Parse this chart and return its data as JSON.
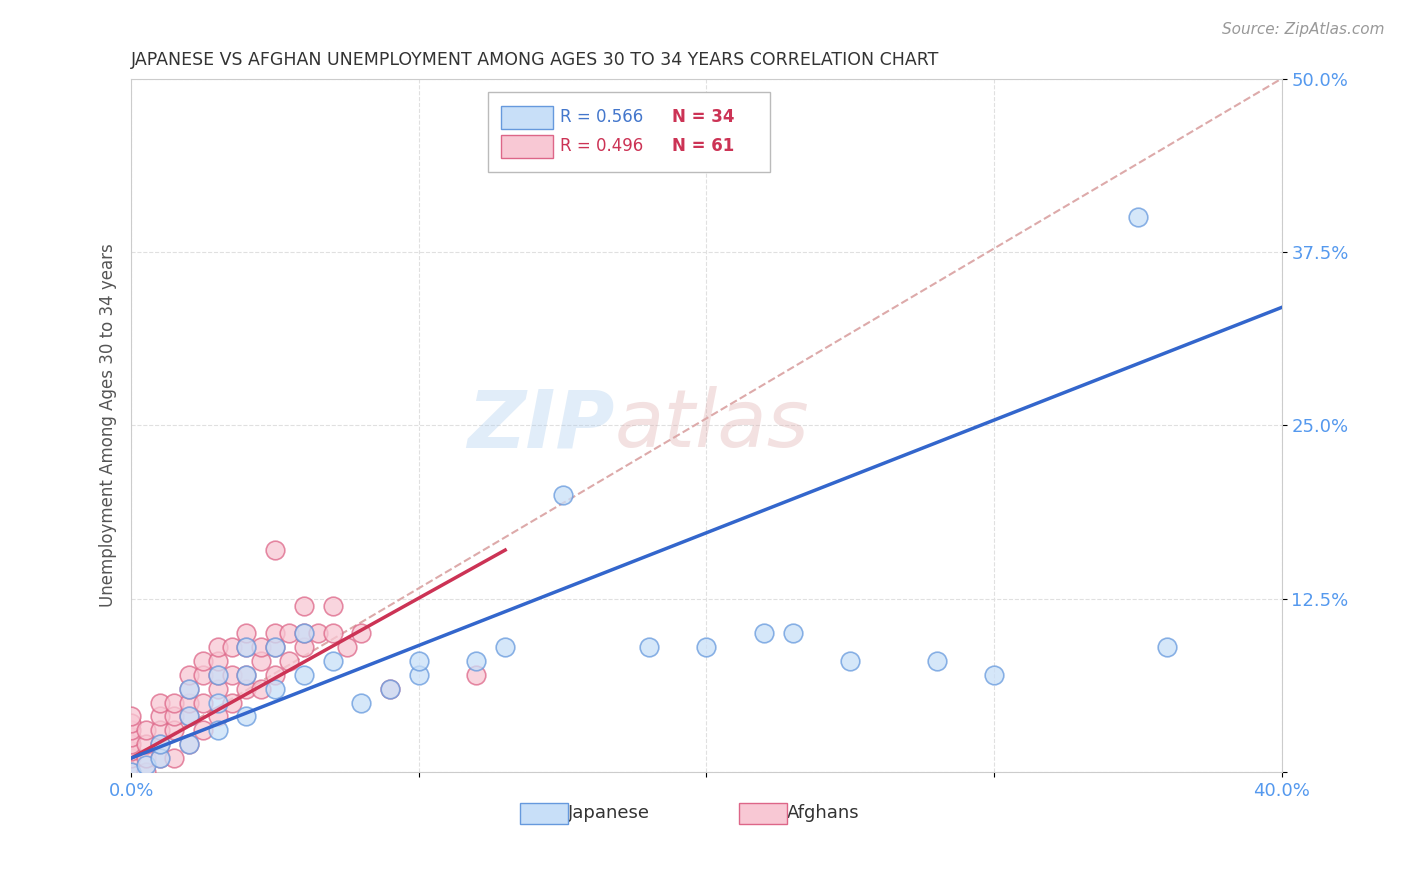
{
  "title": "JAPANESE VS AFGHAN UNEMPLOYMENT AMONG AGES 30 TO 34 YEARS CORRELATION CHART",
  "source": "Source: ZipAtlas.com",
  "ylabel": "Unemployment Among Ages 30 to 34 years",
  "xlim": [
    0.0,
    0.4
  ],
  "ylim": [
    0.0,
    0.5
  ],
  "xticks": [
    0.0,
    0.1,
    0.2,
    0.3,
    0.4
  ],
  "yticks": [
    0.0,
    0.125,
    0.25,
    0.375,
    0.5
  ],
  "xticklabels": [
    "0.0%",
    "",
    "",
    "",
    "40.0%"
  ],
  "yticklabels": [
    "",
    "12.5%",
    "25.0%",
    "37.5%",
    "50.0%"
  ],
  "background_color": "#ffffff",
  "grid_color": "#e0e0e0",
  "watermark_zip": "ZIP",
  "watermark_atlas": "atlas",
  "japanese_fill": "#c8dff8",
  "afghan_fill": "#f8c8d4",
  "japanese_edge": "#6699dd",
  "afghan_edge": "#dd6688",
  "japanese_line_color": "#3366cc",
  "afghan_line_color": "#cc3355",
  "dashed_color": "#ddaaaa",
  "legend_R_jp": "R = 0.566",
  "legend_N_jp": "N = 34",
  "legend_R_af": "R = 0.496",
  "legend_N_af": "N = 61",
  "japanese_points": [
    [
      0.0,
      0.0
    ],
    [
      0.005,
      0.005
    ],
    [
      0.01,
      0.01
    ],
    [
      0.01,
      0.02
    ],
    [
      0.02,
      0.02
    ],
    [
      0.02,
      0.04
    ],
    [
      0.02,
      0.06
    ],
    [
      0.03,
      0.03
    ],
    [
      0.03,
      0.05
    ],
    [
      0.03,
      0.07
    ],
    [
      0.04,
      0.04
    ],
    [
      0.04,
      0.07
    ],
    [
      0.04,
      0.09
    ],
    [
      0.05,
      0.06
    ],
    [
      0.05,
      0.09
    ],
    [
      0.06,
      0.07
    ],
    [
      0.06,
      0.1
    ],
    [
      0.07,
      0.08
    ],
    [
      0.08,
      0.05
    ],
    [
      0.09,
      0.06
    ],
    [
      0.1,
      0.07
    ],
    [
      0.1,
      0.08
    ],
    [
      0.12,
      0.08
    ],
    [
      0.13,
      0.09
    ],
    [
      0.15,
      0.2
    ],
    [
      0.18,
      0.09
    ],
    [
      0.2,
      0.09
    ],
    [
      0.22,
      0.1
    ],
    [
      0.23,
      0.1
    ],
    [
      0.25,
      0.08
    ],
    [
      0.28,
      0.08
    ],
    [
      0.3,
      0.07
    ],
    [
      0.35,
      0.4
    ],
    [
      0.36,
      0.09
    ]
  ],
  "afghan_points": [
    [
      0.0,
      0.0
    ],
    [
      0.0,
      0.01
    ],
    [
      0.0,
      0.015
    ],
    [
      0.0,
      0.02
    ],
    [
      0.0,
      0.025
    ],
    [
      0.0,
      0.03
    ],
    [
      0.0,
      0.035
    ],
    [
      0.0,
      0.04
    ],
    [
      0.005,
      0.0
    ],
    [
      0.005,
      0.01
    ],
    [
      0.005,
      0.02
    ],
    [
      0.005,
      0.03
    ],
    [
      0.01,
      0.01
    ],
    [
      0.01,
      0.02
    ],
    [
      0.01,
      0.03
    ],
    [
      0.01,
      0.04
    ],
    [
      0.01,
      0.05
    ],
    [
      0.015,
      0.01
    ],
    [
      0.015,
      0.03
    ],
    [
      0.015,
      0.04
    ],
    [
      0.015,
      0.05
    ],
    [
      0.02,
      0.02
    ],
    [
      0.02,
      0.04
    ],
    [
      0.02,
      0.05
    ],
    [
      0.02,
      0.06
    ],
    [
      0.02,
      0.07
    ],
    [
      0.025,
      0.03
    ],
    [
      0.025,
      0.05
    ],
    [
      0.025,
      0.07
    ],
    [
      0.025,
      0.08
    ],
    [
      0.03,
      0.04
    ],
    [
      0.03,
      0.06
    ],
    [
      0.03,
      0.07
    ],
    [
      0.03,
      0.08
    ],
    [
      0.03,
      0.09
    ],
    [
      0.035,
      0.05
    ],
    [
      0.035,
      0.07
    ],
    [
      0.035,
      0.09
    ],
    [
      0.04,
      0.06
    ],
    [
      0.04,
      0.07
    ],
    [
      0.04,
      0.09
    ],
    [
      0.04,
      0.1
    ],
    [
      0.045,
      0.06
    ],
    [
      0.045,
      0.08
    ],
    [
      0.045,
      0.09
    ],
    [
      0.05,
      0.07
    ],
    [
      0.05,
      0.09
    ],
    [
      0.05,
      0.1
    ],
    [
      0.05,
      0.16
    ],
    [
      0.055,
      0.08
    ],
    [
      0.055,
      0.1
    ],
    [
      0.06,
      0.09
    ],
    [
      0.06,
      0.1
    ],
    [
      0.06,
      0.12
    ],
    [
      0.065,
      0.1
    ],
    [
      0.07,
      0.1
    ],
    [
      0.07,
      0.12
    ],
    [
      0.075,
      0.09
    ],
    [
      0.08,
      0.1
    ],
    [
      0.09,
      0.06
    ],
    [
      0.12,
      0.07
    ]
  ],
  "japanese_trend": [
    0.0,
    0.01,
    0.4,
    0.335
  ],
  "afghan_trend": [
    0.0,
    0.01,
    0.13,
    0.16
  ],
  "dashed_trend": [
    0.0,
    0.01,
    0.4,
    0.5
  ]
}
